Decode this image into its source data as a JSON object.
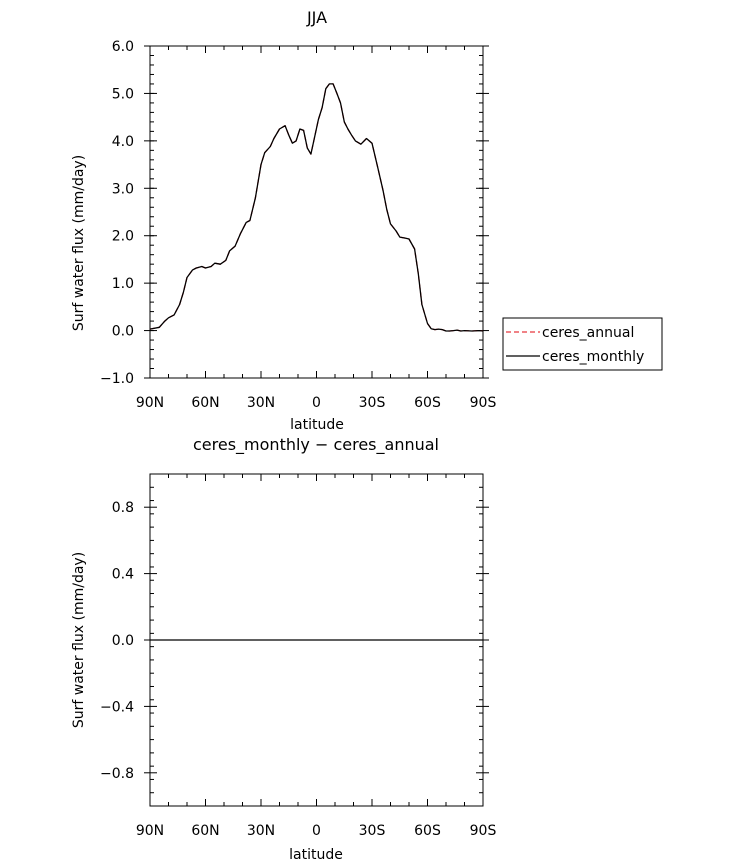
{
  "chart_data": [
    {
      "type": "line",
      "title": "JJA",
      "xlabel": "latitude",
      "ylabel": "Surf water flux (mm/day)",
      "xlim": [
        90,
        -90
      ],
      "ylim": [
        -1.0,
        6.0
      ],
      "x_ticks": [
        {
          "value": 90,
          "label": "90N"
        },
        {
          "value": 60,
          "label": "60N"
        },
        {
          "value": 30,
          "label": "30N"
        },
        {
          "value": 0,
          "label": "0"
        },
        {
          "value": -30,
          "label": "30S"
        },
        {
          "value": -60,
          "label": "60S"
        },
        {
          "value": -90,
          "label": "90S"
        }
      ],
      "y_ticks": [
        {
          "value": -1.0,
          "label": "−1.0"
        },
        {
          "value": 0.0,
          "label": "0.0"
        },
        {
          "value": 1.0,
          "label": "1.0"
        },
        {
          "value": 2.0,
          "label": "2.0"
        },
        {
          "value": 3.0,
          "label": "3.0"
        },
        {
          "value": 4.0,
          "label": "4.0"
        },
        {
          "value": 5.0,
          "label": "5.0"
        },
        {
          "value": 6.0,
          "label": "6.0"
        }
      ],
      "legend_position": "right",
      "series": [
        {
          "name": "ceres_annual",
          "color": "#e8383d",
          "dash": true,
          "x": [
            90,
            85,
            82,
            80,
            77,
            74,
            72,
            70,
            67,
            65,
            62,
            60,
            57,
            55,
            52,
            49,
            47,
            44,
            41,
            38,
            36,
            33,
            30,
            28,
            25,
            23,
            20,
            17,
            15,
            13,
            11,
            9,
            7,
            5,
            3,
            1,
            -1,
            -3,
            -5,
            -7,
            -9,
            -11,
            -13,
            -15,
            -17,
            -19,
            -21,
            -24,
            -27,
            -30,
            -33,
            -36,
            -38,
            -40,
            -43,
            -45,
            -48,
            -50,
            -53,
            -55,
            -57,
            -60,
            -62,
            -64,
            -66,
            -68,
            -70,
            -72,
            -74,
            -76,
            -78,
            -80,
            -84,
            -88,
            -90
          ],
          "y": [
            0.03,
            0.07,
            0.2,
            0.27,
            0.33,
            0.55,
            0.8,
            1.12,
            1.28,
            1.32,
            1.35,
            1.32,
            1.35,
            1.42,
            1.4,
            1.48,
            1.68,
            1.78,
            2.05,
            2.28,
            2.32,
            2.8,
            3.5,
            3.75,
            3.88,
            4.05,
            4.25,
            4.32,
            4.12,
            3.95,
            4.0,
            4.25,
            4.22,
            3.85,
            3.72,
            4.08,
            4.45,
            4.7,
            5.1,
            5.2,
            5.2,
            5.0,
            4.8,
            4.4,
            4.25,
            4.12,
            4.0,
            3.93,
            4.05,
            3.95,
            3.45,
            2.95,
            2.55,
            2.25,
            2.1,
            1.97,
            1.95,
            1.93,
            1.72,
            1.2,
            0.55,
            0.15,
            0.04,
            0.02,
            0.03,
            0.02,
            -0.01,
            -0.01,
            0.0,
            0.01,
            -0.01,
            0.0,
            -0.01,
            0.0,
            -0.01
          ]
        },
        {
          "name": "ceres_monthly",
          "color": "#000000",
          "dash": false,
          "x": [
            90,
            85,
            82,
            80,
            77,
            74,
            72,
            70,
            67,
            65,
            62,
            60,
            57,
            55,
            52,
            49,
            47,
            44,
            41,
            38,
            36,
            33,
            30,
            28,
            25,
            23,
            20,
            17,
            15,
            13,
            11,
            9,
            7,
            5,
            3,
            1,
            -1,
            -3,
            -5,
            -7,
            -9,
            -11,
            -13,
            -15,
            -17,
            -19,
            -21,
            -24,
            -27,
            -30,
            -33,
            -36,
            -38,
            -40,
            -43,
            -45,
            -48,
            -50,
            -53,
            -55,
            -57,
            -60,
            -62,
            -64,
            -66,
            -68,
            -70,
            -72,
            -74,
            -76,
            -78,
            -80,
            -84,
            -88,
            -90
          ],
          "y": [
            0.03,
            0.07,
            0.2,
            0.27,
            0.33,
            0.55,
            0.8,
            1.12,
            1.28,
            1.32,
            1.35,
            1.32,
            1.35,
            1.42,
            1.4,
            1.48,
            1.68,
            1.78,
            2.05,
            2.28,
            2.32,
            2.8,
            3.5,
            3.75,
            3.88,
            4.05,
            4.25,
            4.32,
            4.12,
            3.95,
            4.0,
            4.25,
            4.22,
            3.85,
            3.72,
            4.08,
            4.45,
            4.7,
            5.1,
            5.2,
            5.2,
            5.0,
            4.8,
            4.4,
            4.25,
            4.12,
            4.0,
            3.93,
            4.05,
            3.95,
            3.45,
            2.95,
            2.55,
            2.25,
            2.1,
            1.97,
            1.95,
            1.93,
            1.72,
            1.2,
            0.55,
            0.15,
            0.04,
            0.02,
            0.03,
            0.02,
            -0.01,
            -0.01,
            0.0,
            0.01,
            -0.01,
            0.0,
            -0.01,
            0.0,
            -0.01
          ]
        }
      ],
      "grid": false
    },
    {
      "type": "line",
      "title": "ceres_monthly − ceres_annual",
      "xlabel": "latitude",
      "ylabel": "Surf water flux (mm/day)",
      "xlim": [
        90,
        -90
      ],
      "ylim": [
        -1.0,
        1.0
      ],
      "x_ticks": [
        {
          "value": 90,
          "label": "90N"
        },
        {
          "value": 60,
          "label": "60N"
        },
        {
          "value": 30,
          "label": "30N"
        },
        {
          "value": 0,
          "label": "0"
        },
        {
          "value": -30,
          "label": "30S"
        },
        {
          "value": -60,
          "label": "60S"
        },
        {
          "value": -90,
          "label": "90S"
        }
      ],
      "y_ticks": [
        {
          "value": -0.8,
          "label": "−0.8"
        },
        {
          "value": -0.4,
          "label": "−0.4"
        },
        {
          "value": 0.0,
          "label": "0.0"
        },
        {
          "value": 0.4,
          "label": "0.4"
        },
        {
          "value": 0.8,
          "label": "0.8"
        }
      ],
      "series": [
        {
          "color": "#000000",
          "dash": false,
          "x": [
            90,
            -90
          ],
          "y": [
            0.0,
            0.0
          ]
        }
      ],
      "grid": false
    }
  ]
}
